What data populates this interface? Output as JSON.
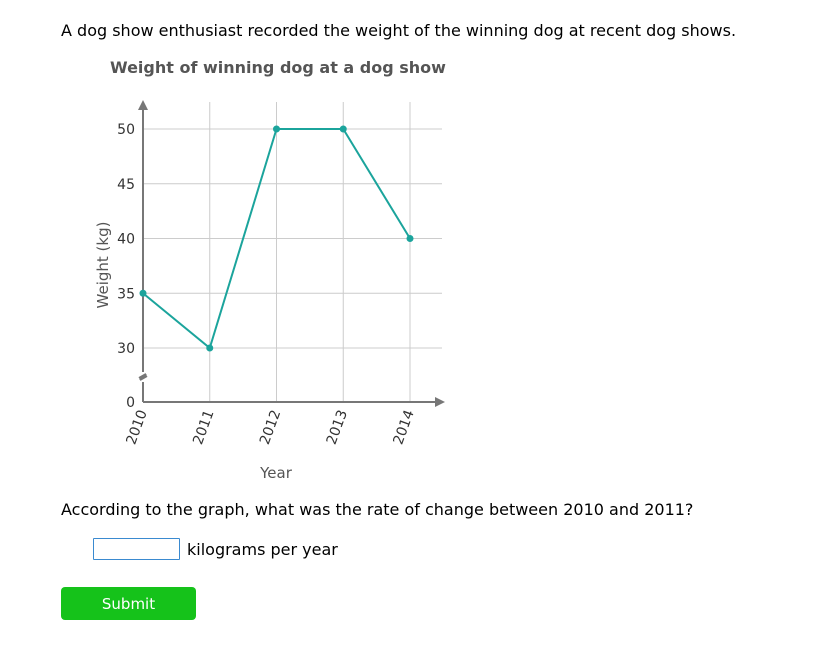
{
  "intro_text": "A dog show enthusiast recorded the weight of the winning dog at recent dog shows.",
  "question_text": "According to the graph, what was the rate of change between 2010 and 2011?",
  "answer": {
    "value": "",
    "placeholder": "",
    "unit": "kilograms per year"
  },
  "submit_label": "Submit",
  "colors": {
    "line": "#1ba49c",
    "grid": "#cccccc",
    "axis": "#777777",
    "submit": "#15c21a"
  },
  "chart_data": {
    "type": "line",
    "title": "Weight of winning dog at a dog show",
    "xlabel": "Year",
    "ylabel": "Weight (kg)",
    "categories": [
      "2010",
      "2011",
      "2012",
      "2013",
      "2014"
    ],
    "values": [
      35,
      30,
      50,
      50,
      40
    ],
    "yticks": [
      0,
      30,
      35,
      40,
      45,
      50
    ],
    "ylim": [
      0,
      50
    ],
    "y_axis_break": true,
    "grid": true
  }
}
